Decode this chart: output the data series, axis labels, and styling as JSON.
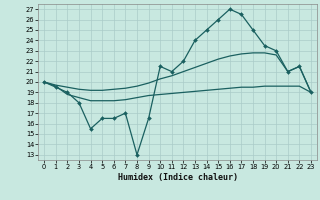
{
  "bg_color": "#c8e8e0",
  "grid_color": "#aaccc8",
  "line_color": "#1a6060",
  "xlabel": "Humidex (Indice chaleur)",
  "ylabel_ticks": [
    13,
    14,
    15,
    16,
    17,
    18,
    19,
    20,
    21,
    22,
    23,
    24,
    25,
    26,
    27
  ],
  "xlim": [
    -0.5,
    23.5
  ],
  "ylim": [
    12.5,
    27.5
  ],
  "line1_x": [
    0,
    1,
    2,
    3,
    4,
    5,
    6,
    7,
    8,
    9,
    10,
    11,
    12,
    13,
    14,
    15,
    16,
    17,
    18,
    19,
    20,
    21,
    22,
    23
  ],
  "line1_y": [
    20.0,
    19.5,
    19.0,
    18.0,
    15.5,
    16.5,
    16.5,
    17.0,
    13.0,
    16.5,
    21.5,
    21.0,
    22.0,
    24.0,
    25.0,
    26.0,
    27.0,
    26.5,
    25.0,
    23.5,
    23.0,
    21.0,
    21.5,
    19.0
  ],
  "line2_x": [
    0,
    1,
    2,
    3,
    4,
    5,
    6,
    7,
    8,
    9,
    10,
    11,
    12,
    13,
    14,
    15,
    16,
    17,
    18,
    19,
    20,
    21,
    22,
    23
  ],
  "line2_y": [
    20.0,
    19.7,
    19.5,
    19.3,
    19.2,
    19.2,
    19.3,
    19.4,
    19.6,
    19.9,
    20.3,
    20.6,
    21.0,
    21.4,
    21.8,
    22.2,
    22.5,
    22.7,
    22.8,
    22.8,
    22.6,
    21.0,
    21.5,
    19.0
  ],
  "line3_x": [
    0,
    1,
    2,
    3,
    4,
    5,
    6,
    7,
    8,
    9,
    10,
    11,
    12,
    13,
    14,
    15,
    16,
    17,
    18,
    19,
    20,
    21,
    22,
    23
  ],
  "line3_y": [
    20.0,
    19.6,
    18.8,
    18.5,
    18.2,
    18.2,
    18.2,
    18.3,
    18.5,
    18.7,
    18.8,
    18.9,
    19.0,
    19.1,
    19.2,
    19.3,
    19.4,
    19.5,
    19.5,
    19.6,
    19.6,
    19.6,
    19.6,
    19.0
  ]
}
